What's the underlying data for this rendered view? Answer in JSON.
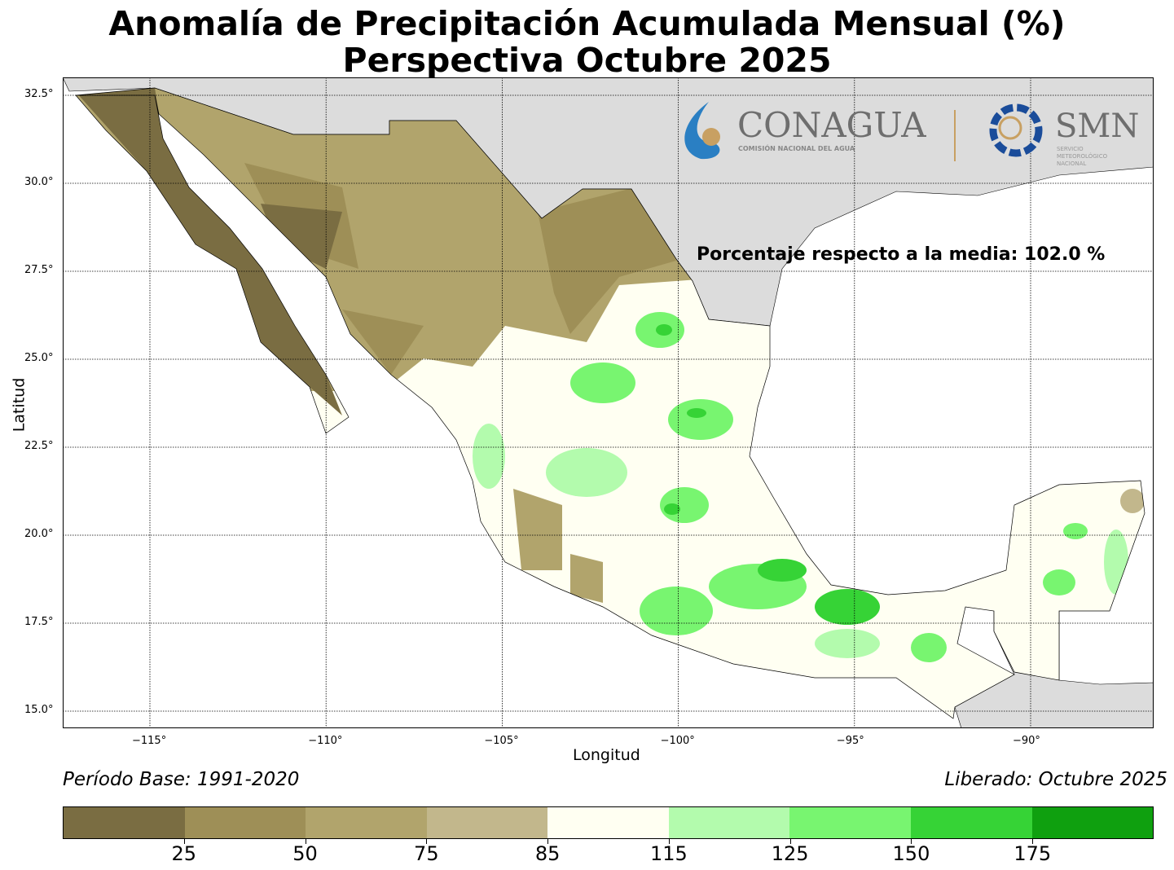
{
  "title": {
    "line1": "Anomalía de Precipitación Acumulada Mensual (%)",
    "line2": "Perspectiva Octubre 2025"
  },
  "axes": {
    "xlabel": "Longitud",
    "ylabel": "Latitud",
    "lon_ticks": [
      {
        "value": -115,
        "label": "−115°"
      },
      {
        "value": -110,
        "label": "−110°"
      },
      {
        "value": -105,
        "label": "−105°"
      },
      {
        "value": -100,
        "label": "−100°"
      },
      {
        "value": -95,
        "label": "−95°"
      },
      {
        "value": -90,
        "label": "−90°"
      }
    ],
    "lat_ticks": [
      {
        "value": 32.5,
        "label": "32.5°"
      },
      {
        "value": 30,
        "label": "30.0°"
      },
      {
        "value": 27.5,
        "label": "27.5°"
      },
      {
        "value": 25,
        "label": "25.0°"
      },
      {
        "value": 22.5,
        "label": "22.5°"
      },
      {
        "value": 20,
        "label": "20.0°"
      },
      {
        "value": 17.5,
        "label": "17.5°"
      },
      {
        "value": 15,
        "label": "15.0°"
      }
    ]
  },
  "annotation": "Porcentaje respecto a la media: 102.0 %",
  "logo": {
    "conagua": "CONAGUA",
    "conagua_sub": "COMISIÓN NACIONAL DEL AGUA",
    "smn": "SMN",
    "smn_sub1": "SERVICIO",
    "smn_sub2": "METEOROLÓGICO",
    "smn_sub3": "NACIONAL"
  },
  "footer": {
    "base": "Período Base: 1991-2020",
    "released": "Liberado: Octubre 2025"
  },
  "legend": {
    "ticks": [
      "25",
      "50",
      "75",
      "85",
      "115",
      "125",
      "150",
      "175"
    ],
    "colors": [
      "#7a6d42",
      "#9e8f57",
      "#b1a46c",
      "#c2b78c",
      "#fffff2",
      "#b3fbad",
      "#78f570",
      "#36d336",
      "#0fa00f"
    ]
  },
  "colors": {
    "land_outside": "#dcdcdc",
    "ocean": "#ffffff"
  }
}
